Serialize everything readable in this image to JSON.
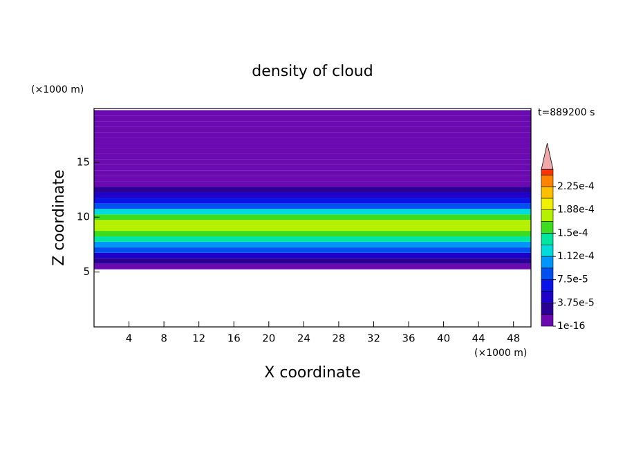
{
  "chart_data": {
    "type": "contour",
    "title": "density of cloud",
    "x_label": "X coordinate",
    "y_label": "Z coordinate",
    "x_unit": "(×1000 m)",
    "y_unit": "(×1000 m)",
    "time_label": "t=889200 s",
    "xlim": [
      0,
      50
    ],
    "ylim": [
      0,
      19.9
    ],
    "xticks": [
      4,
      8,
      12,
      16,
      20,
      24,
      28,
      32,
      36,
      40,
      44,
      48
    ],
    "yticks": [
      5,
      10,
      15
    ],
    "z": [
      5.5,
      6,
      6.5,
      7,
      7.5,
      8,
      8.5,
      9,
      9.5,
      10,
      10.5,
      11,
      11.5,
      12,
      12.5,
      13,
      13.5,
      14,
      14.5,
      15,
      15.5,
      16,
      16.5,
      17,
      17.5,
      18,
      18.5,
      19,
      19.5
    ],
    "values": [
      1e-05,
      2.5e-05,
      5e-05,
      8e-05,
      0.00011,
      0.000135,
      0.000155,
      0.00017,
      0.00018,
      0.000155,
      0.00012,
      9e-05,
      6e-05,
      4e-05,
      2.5e-05,
      1.5e-05,
      1.2e-05,
      8e-06,
      6e-06,
      5e-06,
      5e-06,
      4e-06,
      4e-06,
      3e-06,
      3e-06,
      3e-06,
      2e-06,
      2e-06,
      2e-06
    ],
    "levels": [
      1e-16,
      1.875e-05,
      3.75e-05,
      5.625e-05,
      7.5e-05,
      9.375e-05,
      0.0001125,
      0.00013125,
      0.00015,
      0.00016875,
      0.0001875,
      0.00020625,
      0.000225,
      0.00024375
    ],
    "colors": [
      "#6a0ab0",
      "#2a0096",
      "#1e00c8",
      "#0a14e6",
      "#0050f0",
      "#0096ff",
      "#00dcdc",
      "#00e6a0",
      "#3cdc1e",
      "#b4f000",
      "#f0f000",
      "#ffbe00",
      "#ff8200",
      "#ff3200"
    ],
    "over_color": "#f0a8a8",
    "colorbar_ticks": [
      {
        "value": 1e-16,
        "label": "1e-16"
      },
      {
        "value": 3.75e-05,
        "label": "3.75e-5"
      },
      {
        "value": 7.5e-05,
        "label": "7.5e-5"
      },
      {
        "value": 0.0001125,
        "label": "1.12e-4"
      },
      {
        "value": 0.00015,
        "label": "1.5e-4"
      },
      {
        "value": 0.0001875,
        "label": "1.88e-4"
      },
      {
        "value": 0.000225,
        "label": "2.25e-4"
      }
    ]
  }
}
